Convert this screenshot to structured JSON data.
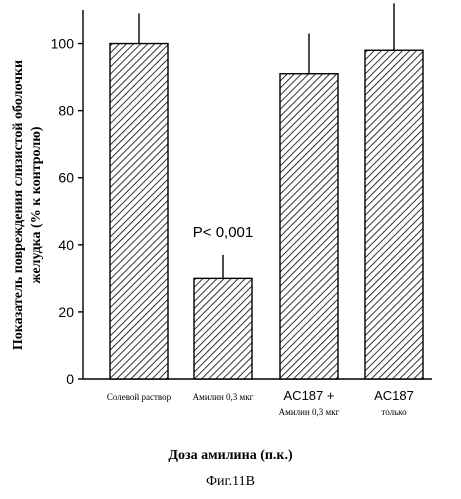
{
  "chart_data": {
    "type": "bar",
    "title": "",
    "ylabel": [
      "Показатель повреждения слизистой оболочки",
      "желудка (% к контролю)"
    ],
    "xlabel": "Доза амилина (п.к.)",
    "ylim": [
      0,
      110
    ],
    "yticks": [
      0,
      20,
      40,
      60,
      80,
      100
    ],
    "categories": [
      {
        "lines": [
          "Солевой раствор"
        ]
      },
      {
        "lines": [
          "Амилин 0,3 мкг"
        ]
      },
      {
        "lines": [
          "AC187 +",
          "Амилин 0,3 мкг"
        ]
      },
      {
        "lines": [
          "AC187",
          "только"
        ]
      }
    ],
    "values": [
      100,
      30,
      91,
      98
    ],
    "errors": [
      9,
      7,
      12,
      14
    ],
    "annotation": "P< 0,001",
    "grid": false,
    "bar_pattern": "diagonal-hatch"
  },
  "caption": "Фиг.11В"
}
